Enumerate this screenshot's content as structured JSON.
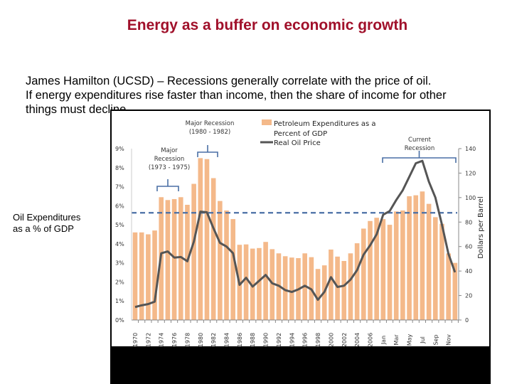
{
  "slide": {
    "title": "Energy as a buffer on economic growth",
    "body_lines": [
      "James Hamilton (UCSD) – Recessions generally correlate with the price of oil.",
      "If energy expenditures rise faster than income, then the share of income for other",
      "things must decline"
    ],
    "side_label_lines": [
      "Oil Expenditures",
      "as a % of GDP"
    ]
  },
  "chart_data": {
    "type": "bar+line",
    "categories": [
      "1970",
      "1971",
      "1972",
      "1973",
      "1974",
      "1975",
      "1976",
      "1977",
      "1978",
      "1979",
      "1980",
      "1981",
      "1982",
      "1983",
      "1984",
      "1985",
      "1986",
      "1987",
      "1988",
      "1989",
      "1990",
      "1991",
      "1992",
      "1993",
      "1994",
      "1995",
      "1996",
      "1997",
      "1998",
      "1999",
      "2000",
      "2001",
      "2002",
      "2003",
      "2004",
      "2005",
      "2006",
      "2007",
      "Jan",
      "Feb",
      "Mar",
      "Apr",
      "May",
      "Jun",
      "Jul",
      "Aug",
      "Sep",
      "Oct",
      "Nov",
      "Dec"
    ],
    "x_tick_labels": [
      "1970",
      "1972",
      "1974",
      "1976",
      "1978",
      "1980",
      "1982",
      "1984",
      "1986",
      "1988",
      "1990",
      "1992",
      "1994",
      "1996",
      "1998",
      "2000",
      "2002",
      "2004",
      "2006",
      "Jan",
      "Mar",
      "May",
      "Jul",
      "Sep",
      "Nov"
    ],
    "series": [
      {
        "name": "Petroleum Expenditures as a Percent of GDP",
        "type": "bar",
        "axis": "left",
        "color": "#f4b98a",
        "values": [
          4.6,
          4.6,
          4.5,
          4.7,
          6.45,
          6.3,
          6.35,
          6.45,
          6.05,
          7.15,
          8.5,
          8.45,
          7.45,
          6.25,
          5.75,
          5.3,
          3.95,
          3.97,
          3.75,
          3.78,
          4.1,
          3.72,
          3.5,
          3.35,
          3.28,
          3.25,
          3.5,
          3.3,
          2.68,
          2.87,
          3.7,
          3.33,
          3.1,
          3.5,
          4.03,
          4.8,
          5.2,
          5.37,
          5.3,
          5.0,
          5.7,
          5.75,
          6.5,
          6.55,
          6.75,
          6.1,
          5.4,
          5.05,
          3.5,
          3.0
        ]
      },
      {
        "name": "Real Oil Price",
        "type": "line",
        "axis": "right",
        "color": "#555555",
        "values": [
          10.6,
          12,
          13,
          15,
          54.5,
          56,
          51,
          51.5,
          48,
          64,
          88.5,
          88,
          75,
          63,
          60,
          54.6,
          28.7,
          34.5,
          27.3,
          32,
          36.8,
          30,
          28,
          24.4,
          22.9,
          25,
          28,
          25,
          16.5,
          23,
          35,
          27,
          28,
          33,
          40.7,
          53.4,
          61,
          70,
          86,
          89,
          98,
          106,
          117,
          128,
          130,
          113,
          100,
          78,
          54,
          39
        ]
      }
    ],
    "reference_line": {
      "value": 5.63,
      "axis": "left",
      "style": "dashed",
      "color": "#4a6fa5"
    },
    "y_left": {
      "ticks": [
        "0%",
        "1%",
        "2%",
        "3%",
        "4%",
        "5%",
        "6%",
        "7%",
        "8%",
        "9%"
      ],
      "ylim": [
        0,
        9
      ]
    },
    "y_right": {
      "label": "Dollars per Barrel",
      "ticks": [
        "0",
        "20",
        "40",
        "60",
        "80",
        "100",
        "120",
        "140"
      ],
      "ylim": [
        0,
        140
      ]
    },
    "annotations": [
      {
        "lines": [
          "Major Recession",
          "(1980 - 1982)"
        ]
      },
      {
        "lines": [
          "Major",
          "Recession",
          "(1973 - 1975)"
        ]
      },
      {
        "lines": [
          "Current",
          "Recession"
        ]
      }
    ],
    "legend_placement": "top",
    "grid": false
  }
}
